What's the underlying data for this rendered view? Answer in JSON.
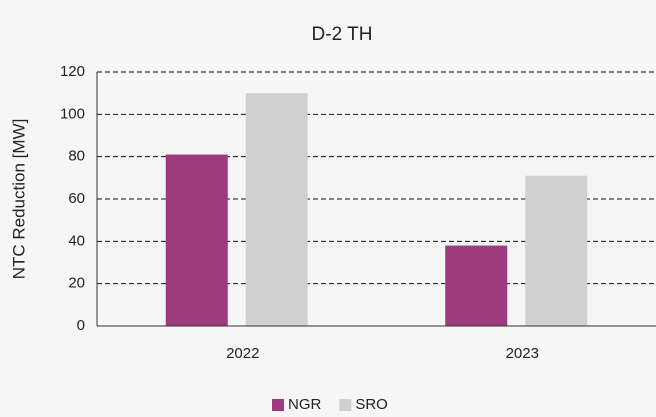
{
  "chart_data": {
    "type": "bar",
    "title": "D-2 TH",
    "ylabel": "NTC Reduction [MW]",
    "categories": [
      "2022",
      "2023"
    ],
    "series": [
      {
        "name": "NGR",
        "color": "#9e3a7e",
        "values": [
          81,
          38
        ]
      },
      {
        "name": "SRO",
        "color": "#d0d0d0",
        "values": [
          110,
          71
        ]
      }
    ],
    "ylim": [
      0,
      120
    ],
    "yticks": [
      0,
      20,
      40,
      60,
      80,
      100,
      120
    ],
    "grid": true,
    "legend": "bottom"
  }
}
